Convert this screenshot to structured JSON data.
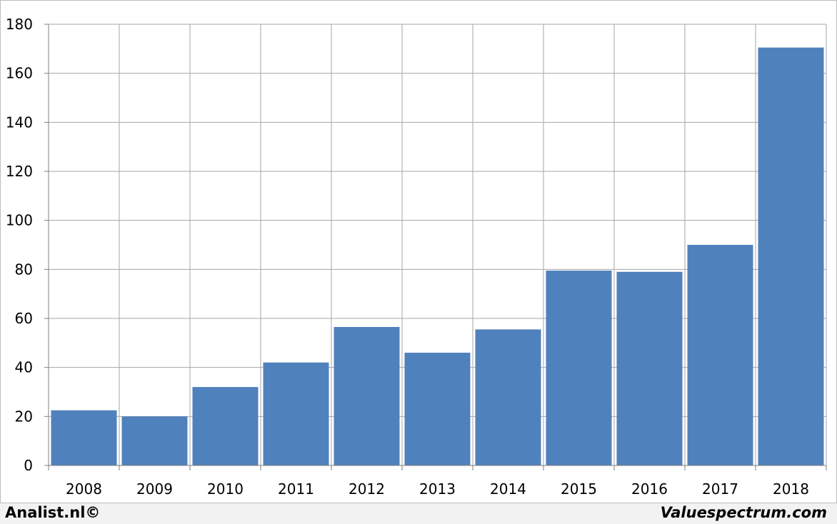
{
  "chart_data": {
    "type": "bar",
    "categories": [
      "2008",
      "2009",
      "2010",
      "2011",
      "2012",
      "2013",
      "2014",
      "2015",
      "2016",
      "2017",
      "2018"
    ],
    "values": [
      22.5,
      20,
      32,
      42,
      56.5,
      46,
      55.5,
      79.5,
      79,
      90,
      170.5
    ],
    "ylim": [
      0,
      180
    ],
    "yticks": [
      0,
      20,
      40,
      60,
      80,
      100,
      120,
      140,
      160,
      180
    ],
    "grid": true,
    "bar_color": "#4f81bd",
    "grid_color": "#a6a6a6"
  },
  "footer": {
    "left": "Analist.nl©",
    "right": "Valuespectrum.com"
  }
}
